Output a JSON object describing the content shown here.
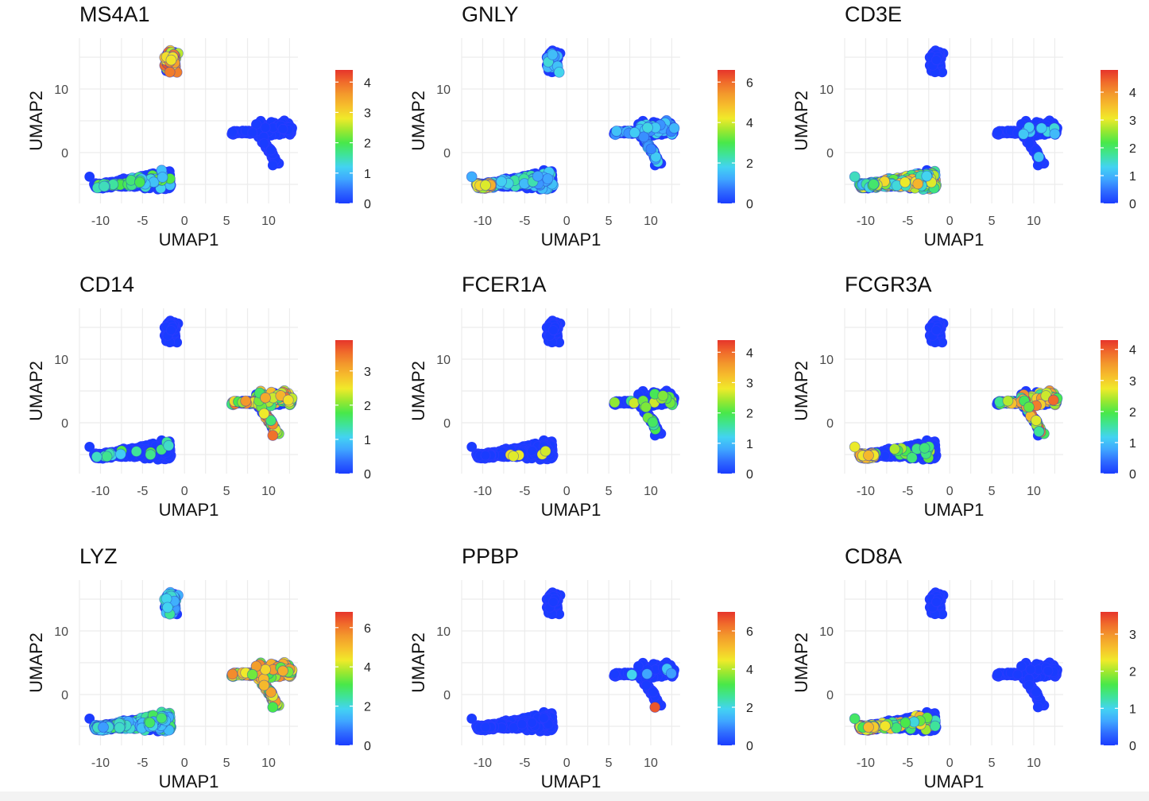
{
  "figure": {
    "colormap": [
      "#1a3cff",
      "#2f6bff",
      "#3fa7ff",
      "#43d3f2",
      "#3fe39a",
      "#48e84a",
      "#9be830",
      "#f0ea2a",
      "#f6c02c",
      "#f39a2c",
      "#f06b2b",
      "#e6352b"
    ],
    "marker_outline": "#2a3cff",
    "panel_background": "#ffffff",
    "grid_color": "#ececec"
  },
  "chart_data": [
    {
      "type": "scatter",
      "title": "MS4A1",
      "xlabel": "UMAP1",
      "ylabel": "UMAP2",
      "xlim": [
        -12.5,
        13.5
      ],
      "ylim": [
        -8,
        18
      ],
      "grid": true,
      "xticks": [
        "-10",
        "-5",
        "0",
        "5",
        "10"
      ],
      "xtick_values": [
        -10,
        -5,
        0,
        5,
        10
      ],
      "yticks": [
        "10",
        "0"
      ],
      "ytick_values": [
        10,
        0
      ],
      "colorbar": {
        "max": 4.4,
        "ticks": [
          "0",
          "1",
          "2",
          "3",
          "4"
        ],
        "tick_values": [
          0,
          1,
          2,
          3,
          4
        ]
      },
      "highlights": [
        {
          "cluster": "b",
          "fraction": 0.85,
          "levels": [
            2.5,
            4.2
          ]
        },
        {
          "cluster": "a",
          "fraction": 0.12,
          "levels": [
            1.0,
            2.2
          ]
        }
      ]
    },
    {
      "type": "scatter",
      "title": "GNLY",
      "xlabel": "UMAP1",
      "ylabel": "UMAP2",
      "xlim": [
        -12.5,
        13.5
      ],
      "ylim": [
        -8,
        18
      ],
      "grid": true,
      "xticks": [
        "-10",
        "-5",
        "0",
        "5",
        "10"
      ],
      "xtick_values": [
        -10,
        -5,
        0,
        5,
        10
      ],
      "yticks": [
        "10",
        "0"
      ],
      "ytick_values": [
        10,
        0
      ],
      "colorbar": {
        "max": 6.6,
        "ticks": [
          "0",
          "2",
          "4",
          "6"
        ],
        "tick_values": [
          0,
          2,
          4,
          6
        ]
      },
      "highlights": [
        {
          "cluster": "tip",
          "fraction": 0.9,
          "levels": [
            3.5,
            5.5
          ]
        },
        {
          "cluster": "a",
          "fraction": 0.15,
          "levels": [
            1.0,
            2.5
          ]
        },
        {
          "cluster": "c",
          "fraction": 0.25,
          "levels": [
            0.8,
            2.0
          ]
        },
        {
          "cluster": "b",
          "fraction": 0.1,
          "levels": [
            1.0,
            2.0
          ]
        }
      ]
    },
    {
      "type": "scatter",
      "title": "CD3E",
      "xlabel": "UMAP1",
      "ylabel": "UMAP2",
      "xlim": [
        -12.5,
        13.5
      ],
      "ylim": [
        -8,
        18
      ],
      "grid": true,
      "xticks": [
        "-10",
        "-5",
        "0",
        "5",
        "10"
      ],
      "xtick_values": [
        -10,
        -5,
        0,
        5,
        10
      ],
      "yticks": [
        "10",
        "0"
      ],
      "ytick_values": [
        10,
        0
      ],
      "colorbar": {
        "max": 4.8,
        "ticks": [
          "0",
          "1",
          "2",
          "3",
          "4"
        ],
        "tick_values": [
          0,
          1,
          2,
          3,
          4
        ]
      },
      "highlights": [
        {
          "cluster": "a",
          "fraction": 0.75,
          "levels": [
            1.2,
            3.8
          ]
        },
        {
          "cluster": "tip",
          "fraction": 0.3,
          "levels": [
            1.0,
            2.5
          ]
        },
        {
          "cluster": "c",
          "fraction": 0.05,
          "levels": [
            1.0,
            1.5
          ]
        }
      ]
    },
    {
      "type": "scatter",
      "title": "CD14",
      "xlabel": "UMAP1",
      "ylabel": "UMAP2",
      "xlim": [
        -12.5,
        13.5
      ],
      "ylim": [
        -8,
        18
      ],
      "grid": true,
      "xticks": [
        "-10",
        "-5",
        "0",
        "5",
        "10"
      ],
      "xtick_values": [
        -10,
        -5,
        0,
        5,
        10
      ],
      "yticks": [
        "10",
        "0"
      ],
      "ytick_values": [
        10,
        0
      ],
      "colorbar": {
        "max": 3.9,
        "ticks": [
          "0",
          "1",
          "2",
          "3"
        ],
        "tick_values": [
          0,
          1,
          2,
          3
        ]
      },
      "highlights": [
        {
          "cluster": "c",
          "fraction": 0.6,
          "levels": [
            1.5,
            3.6
          ]
        },
        {
          "cluster": "a",
          "fraction": 0.02,
          "levels": [
            1.0,
            2.0
          ]
        }
      ]
    },
    {
      "type": "scatter",
      "title": "FCER1A",
      "xlabel": "UMAP1",
      "ylabel": "UMAP2",
      "xlim": [
        -12.5,
        13.5
      ],
      "ylim": [
        -8,
        18
      ],
      "grid": true,
      "xticks": [
        "-10",
        "-5",
        "0",
        "5",
        "10"
      ],
      "xtick_values": [
        -10,
        -5,
        0,
        5,
        10
      ],
      "yticks": [
        "10",
        "0"
      ],
      "ytick_values": [
        10,
        0
      ],
      "colorbar": {
        "max": 4.4,
        "ticks": [
          "0",
          "1",
          "2",
          "3",
          "4"
        ],
        "tick_values": [
          0,
          1,
          2,
          3,
          4
        ]
      },
      "highlights": [
        {
          "cluster": "c",
          "fraction": 0.06,
          "levels": [
            1.5,
            2.8
          ]
        },
        {
          "cluster": "a",
          "fraction": 0.005,
          "levels": [
            2.5,
            3.0
          ]
        }
      ]
    },
    {
      "type": "scatter",
      "title": "FCGR3A",
      "xlabel": "UMAP1",
      "ylabel": "UMAP2",
      "xlim": [
        -12.5,
        13.5
      ],
      "ylim": [
        -8,
        18
      ],
      "grid": true,
      "xticks": [
        "-10",
        "-5",
        "0",
        "5",
        "10"
      ],
      "xtick_values": [
        -10,
        -5,
        0,
        5,
        10
      ],
      "yticks": [
        "10",
        "0"
      ],
      "ytick_values": [
        10,
        0
      ],
      "colorbar": {
        "max": 4.3,
        "ticks": [
          "0",
          "1",
          "2",
          "3",
          "4"
        ],
        "tick_values": [
          0,
          1,
          2,
          3,
          4
        ]
      },
      "highlights": [
        {
          "cluster": "tip",
          "fraction": 0.9,
          "levels": [
            2.5,
            3.5
          ]
        },
        {
          "cluster": "c",
          "fraction": 0.35,
          "levels": [
            1.5,
            4.0
          ]
        },
        {
          "cluster": "a",
          "fraction": 0.04,
          "levels": [
            1.5,
            2.5
          ]
        }
      ]
    },
    {
      "type": "scatter",
      "title": "LYZ",
      "xlabel": "UMAP1",
      "ylabel": "UMAP2",
      "xlim": [
        -12.5,
        13.5
      ],
      "ylim": [
        -8,
        18
      ],
      "grid": true,
      "xticks": [
        "-10",
        "-5",
        "0",
        "5",
        "10"
      ],
      "xtick_values": [
        -10,
        -5,
        0,
        5,
        10
      ],
      "yticks": [
        "10",
        "0"
      ],
      "ytick_values": [
        10,
        0
      ],
      "colorbar": {
        "max": 6.8,
        "ticks": [
          "0",
          "2",
          "4",
          "6"
        ],
        "tick_values": [
          0,
          2,
          4,
          6
        ]
      },
      "highlights": [
        {
          "cluster": "c",
          "fraction": 0.95,
          "levels": [
            3.0,
            6.0
          ]
        },
        {
          "cluster": "a",
          "fraction": 0.55,
          "levels": [
            1.2,
            3.0
          ]
        },
        {
          "cluster": "b",
          "fraction": 0.6,
          "levels": [
            1.0,
            2.5
          ]
        },
        {
          "cluster": "tip",
          "fraction": 0.6,
          "levels": [
            1.0,
            2.5
          ]
        }
      ]
    },
    {
      "type": "scatter",
      "title": "PPBP",
      "xlabel": "UMAP1",
      "ylabel": "UMAP2",
      "xlim": [
        -12.5,
        13.5
      ],
      "ylim": [
        -8,
        18
      ],
      "grid": true,
      "xticks": [
        "-10",
        "-5",
        "0",
        "5",
        "10"
      ],
      "xtick_values": [
        -10,
        -5,
        0,
        5,
        10
      ],
      "yticks": [
        "10",
        "0"
      ],
      "ytick_values": [
        10,
        0
      ],
      "colorbar": {
        "max": 7.0,
        "ticks": [
          "0",
          "2",
          "4",
          "6"
        ],
        "tick_values": [
          0,
          2,
          4,
          6
        ]
      },
      "highlights": [
        {
          "cluster": "c",
          "fraction": 0.02,
          "levels": [
            1.0,
            2.0
          ]
        }
      ],
      "special_points": [
        {
          "x": 10.5,
          "y": -2.0,
          "value": 6.6
        }
      ]
    },
    {
      "type": "scatter",
      "title": "CD8A",
      "xlabel": "UMAP1",
      "ylabel": "UMAP2",
      "xlim": [
        -12.5,
        13.5
      ],
      "ylim": [
        -8,
        18
      ],
      "grid": true,
      "xticks": [
        "-10",
        "-5",
        "0",
        "5",
        "10"
      ],
      "xtick_values": [
        -10,
        -5,
        0,
        5,
        10
      ],
      "yticks": [
        "10",
        "0"
      ],
      "ytick_values": [
        10,
        0
      ],
      "colorbar": {
        "max": 3.6,
        "ticks": [
          "0",
          "1",
          "2",
          "3"
        ],
        "tick_values": [
          0,
          1,
          2,
          3
        ]
      },
      "highlights": [
        {
          "cluster": "tip",
          "fraction": 0.75,
          "levels": [
            1.5,
            3.5
          ]
        },
        {
          "cluster": "a",
          "fraction": 0.1,
          "levels": [
            1.0,
            2.8
          ]
        }
      ]
    }
  ]
}
